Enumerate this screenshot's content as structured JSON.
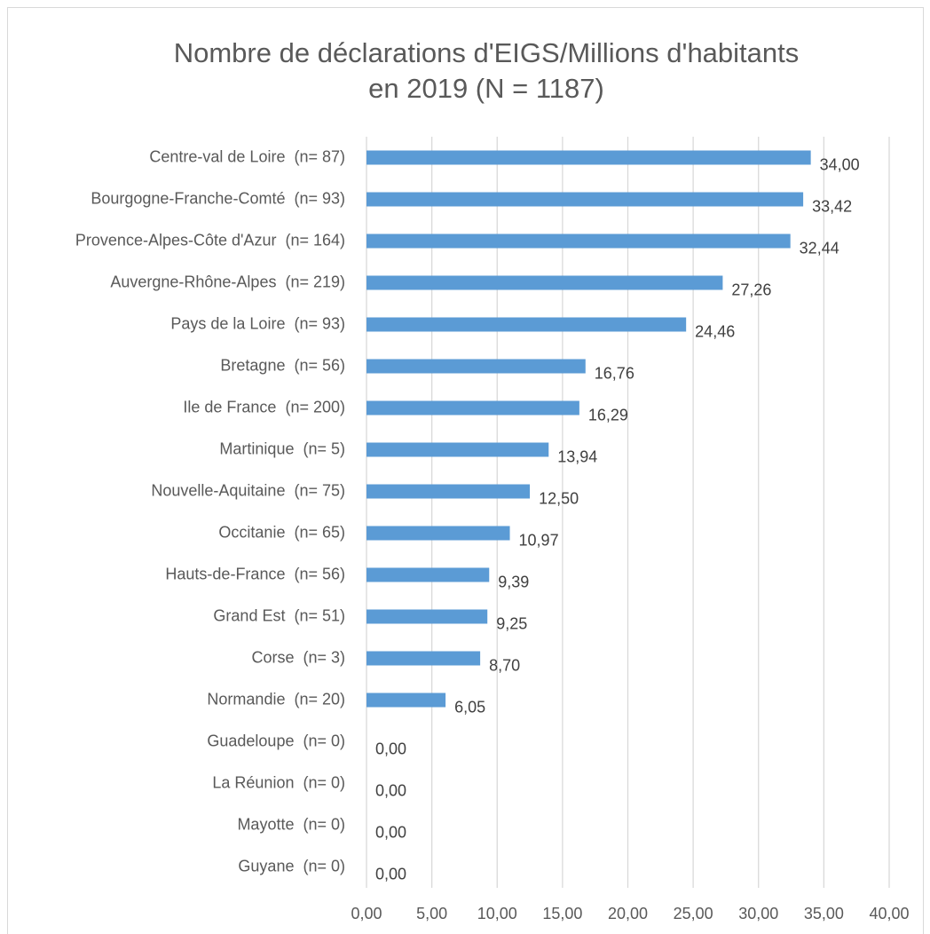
{
  "chart_data": {
    "type": "bar",
    "orientation": "horizontal",
    "title": [
      "Nombre de déclarations d'EIGS/Millions d'habitants",
      "en 2019 (N = 1187)"
    ],
    "categories": [
      "Centre-val de Loire  (n= 87)",
      "Bourgogne-Franche-Comté  (n= 93)",
      "Provence-Alpes-Côte d'Azur  (n= 164)",
      "Auvergne-Rhône-Alpes  (n= 219)",
      "Pays de la Loire  (n= 93)",
      "Bretagne  (n= 56)",
      "Ile de France  (n= 200)",
      "Martinique  (n= 5)",
      "Nouvelle-Aquitaine  (n= 75)",
      "Occitanie  (n= 65)",
      "Hauts-de-France  (n= 56)",
      "Grand Est  (n= 51)",
      "Corse  (n= 3)",
      "Normandie  (n= 20)",
      "Guadeloupe  (n= 0)",
      "La Réunion  (n= 0)",
      "Mayotte  (n= 0)",
      "Guyane  (n= 0)"
    ],
    "values": [
      34.0,
      33.42,
      32.44,
      27.26,
      24.46,
      16.76,
      16.29,
      13.94,
      12.5,
      10.97,
      9.39,
      9.25,
      8.7,
      6.05,
      0.0,
      0.0,
      0.0,
      0.0
    ],
    "value_labels": [
      "34,00",
      "33,42",
      "32,44",
      "27,26",
      "24,46",
      "16,76",
      "16,29",
      "13,94",
      "12,50",
      "10,97",
      "9,39",
      "9,25",
      "8,70",
      "6,05",
      "0,00",
      "0,00",
      "0,00",
      "0,00"
    ],
    "color": "#5b9bd5",
    "xlim": [
      0,
      40
    ],
    "xticks": [
      {
        "value": 0,
        "label": "0,00"
      },
      {
        "value": 5,
        "label": "5,00"
      },
      {
        "value": 10,
        "label": "10,00"
      },
      {
        "value": 15,
        "label": "15,00"
      },
      {
        "value": 20,
        "label": "20,00"
      },
      {
        "value": 25,
        "label": "25,00"
      },
      {
        "value": 30,
        "label": "30,00"
      },
      {
        "value": 35,
        "label": "35,00"
      },
      {
        "value": 40,
        "label": "40,00"
      }
    ],
    "grid": true
  }
}
